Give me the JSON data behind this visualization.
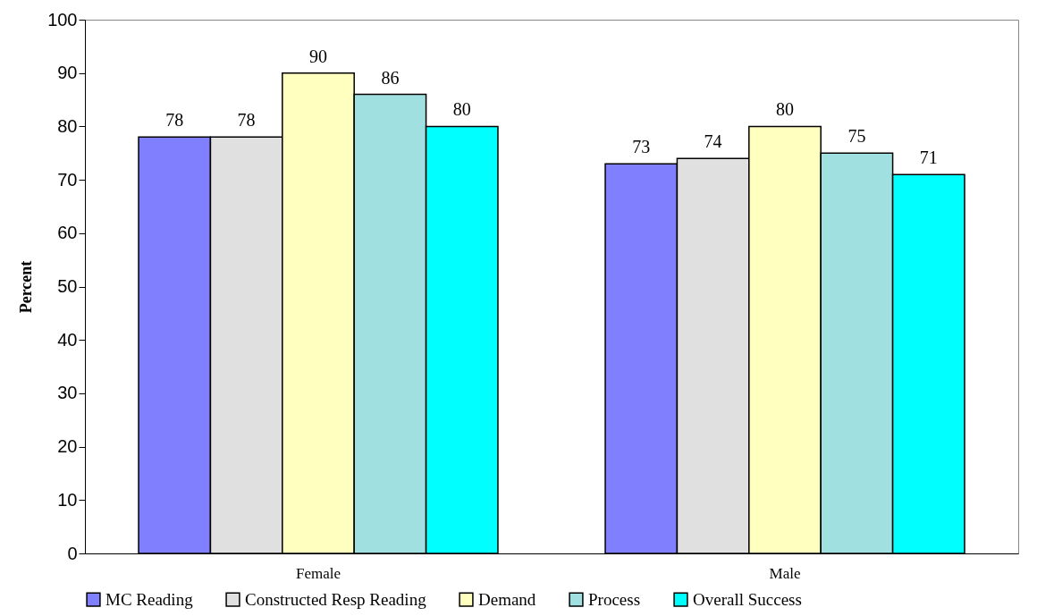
{
  "chart_data": {
    "type": "bar",
    "ylabel": "Percent",
    "categories": [
      "Female",
      "Male"
    ],
    "series": [
      {
        "name": "MC Reading",
        "color": "#8080ff",
        "values": [
          78,
          73
        ]
      },
      {
        "name": "Constructed Resp Reading",
        "color": "#e0e0e0",
        "values": [
          78,
          74
        ]
      },
      {
        "name": "Demand",
        "color": "#ffffc0",
        "values": [
          90,
          80
        ]
      },
      {
        "name": "Process",
        "color": "#a0e0e0",
        "values": [
          86,
          75
        ]
      },
      {
        "name": "Overall Success",
        "color": "#00ffff",
        "values": [
          80,
          71
        ]
      }
    ],
    "ylim": [
      0,
      100
    ],
    "yticks": [
      0,
      10,
      20,
      30,
      40,
      50,
      60,
      70,
      80,
      90,
      100
    ],
    "data_labels": true,
    "legend": "bottom",
    "grid": false
  }
}
